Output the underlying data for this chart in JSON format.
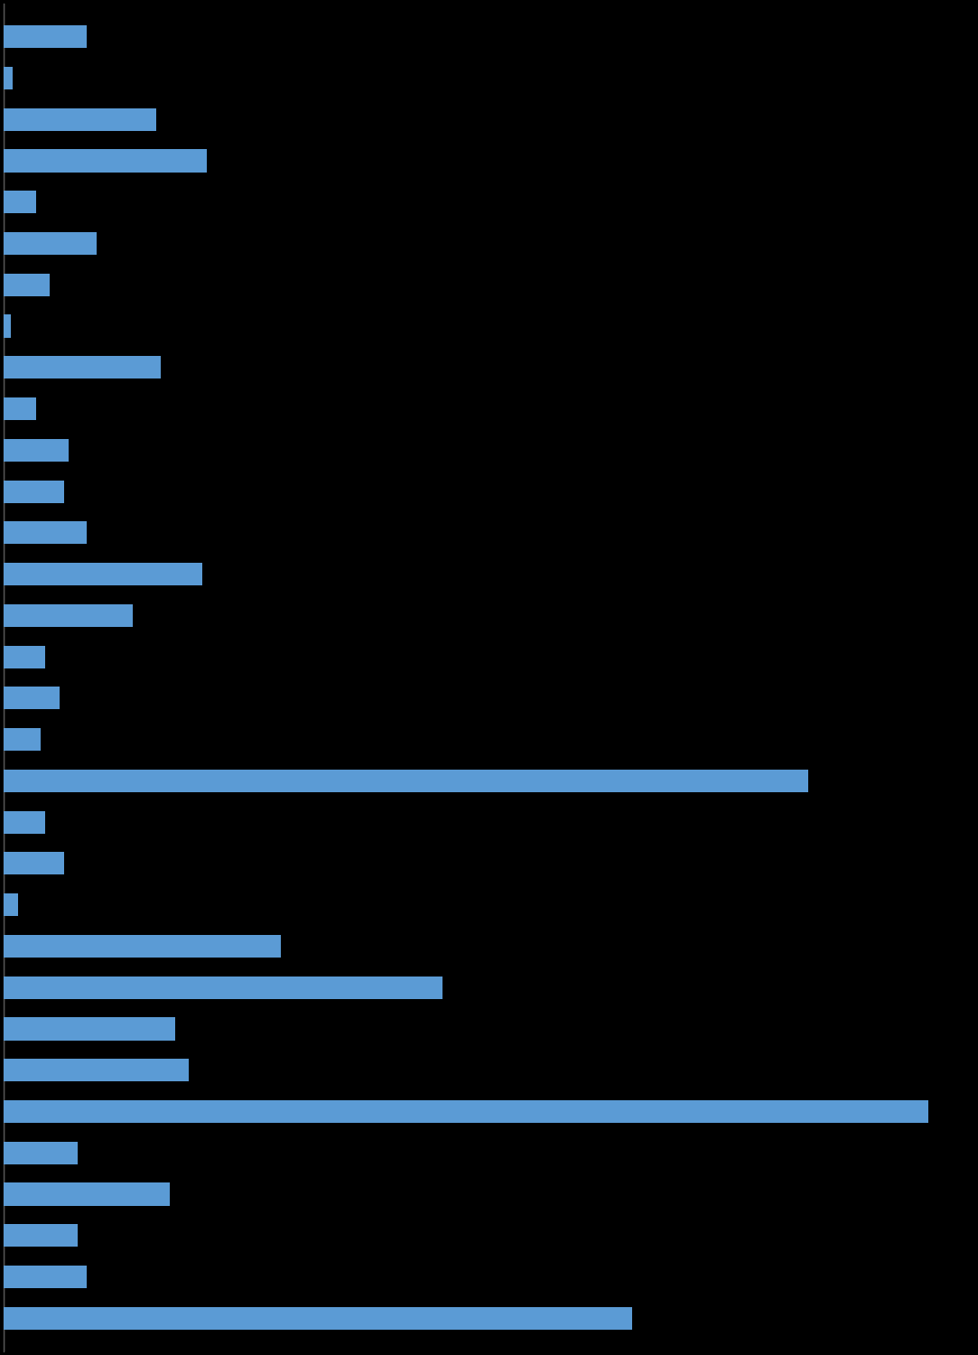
{
  "background_color": "#000000",
  "bar_color": "#5B9BD5",
  "values": [
    9.0,
    1.0,
    16.5,
    22.0,
    3.5,
    10.0,
    5.0,
    0.8,
    17.0,
    3.5,
    7.0,
    6.5,
    9.0,
    21.5,
    14.0,
    4.5,
    6.0,
    4.0,
    87.0,
    4.5,
    6.5,
    1.5,
    30.0,
    47.5,
    18.5,
    20.0,
    100.0,
    8.0,
    18.0,
    8.0,
    9.0,
    68.0
  ],
  "xlim": [
    0,
    105
  ],
  "bar_height": 0.55,
  "figsize": [
    10.83,
    15.0
  ],
  "dpi": 100
}
